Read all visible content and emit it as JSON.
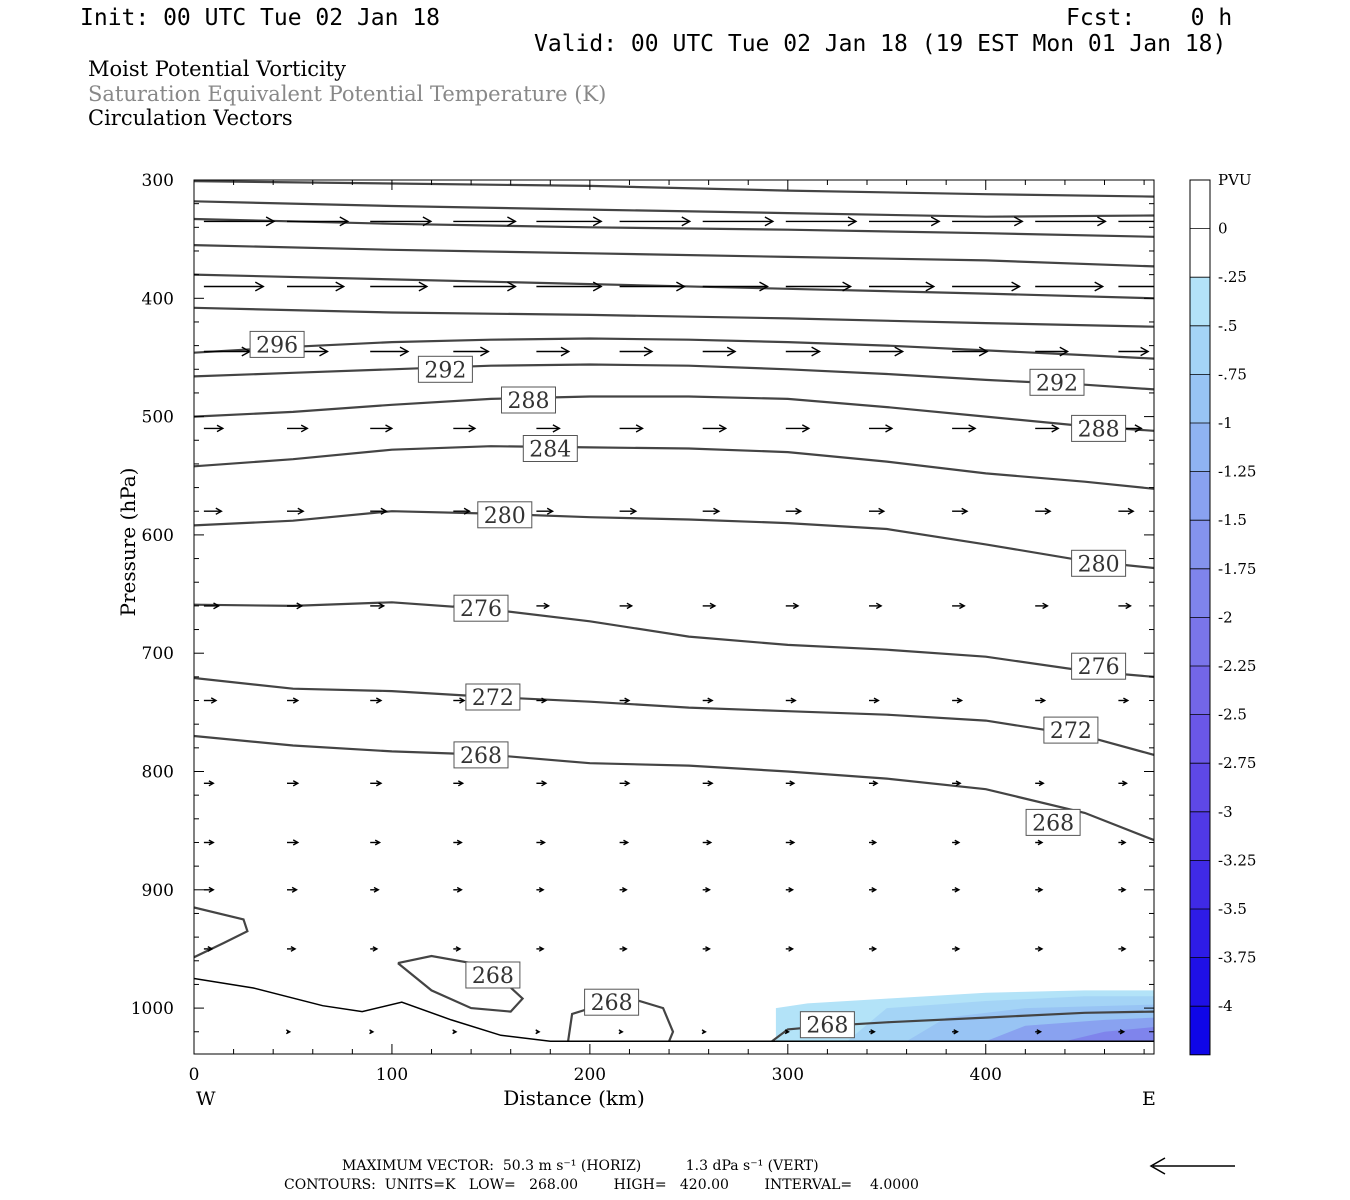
{
  "header": {
    "init": "Init: 00 UTC Tue 02 Jan 18",
    "fcst": "Fcst:    0 h",
    "valid": "Valid: 00 UTC Tue 02 Jan 18 (19 EST Mon 01 Jan 18)"
  },
  "titles": {
    "line1": "Moist Potential Vorticity",
    "line2": "Saturation Equivalent Potential Temperature (K)",
    "line3": "Circulation Vectors"
  },
  "footer": {
    "max_vector": "MAXIMUM VECTOR:  50.3 m s⁻¹ (HORIZ)          1.3 dPa s⁻¹ (VERT)",
    "contours": "CONTOURS:  UNITS=K   LOW=   268.00        HIGH=   420.00        INTERVAL=    4.0000"
  },
  "colors": {
    "contour": "#444444",
    "vector": "#000000",
    "pv_light": "#b3e3f8",
    "pv_dark": "#3a3ae0"
  },
  "chart_data": {
    "type": "line",
    "xlabel": "Distance (km)",
    "ylabel": "Pressure (hPa)",
    "xlim": [
      0,
      485
    ],
    "ylim": [
      300,
      1040
    ],
    "y_inverted": true,
    "x_ticks": [
      0,
      100,
      200,
      300,
      400
    ],
    "y_ticks": [
      300,
      400,
      500,
      600,
      700,
      800,
      900,
      1000
    ],
    "x_end_labels": {
      "left": "W",
      "right": "E"
    },
    "contour_series": [
      {
        "level": 268,
        "label": "268",
        "points": [
          [
            0,
            770
          ],
          [
            50,
            778
          ],
          [
            100,
            783
          ],
          [
            150,
            786
          ],
          [
            200,
            793
          ],
          [
            250,
            795
          ],
          [
            300,
            800
          ],
          [
            350,
            806
          ],
          [
            400,
            815
          ],
          [
            450,
            835
          ],
          [
            485,
            858
          ]
        ],
        "labels_at": [
          [
            145,
            786
          ],
          [
            434,
            843
          ]
        ]
      },
      {
        "level": 272,
        "label": "272",
        "points": [
          [
            0,
            721
          ],
          [
            50,
            730
          ],
          [
            100,
            732
          ],
          [
            150,
            737
          ],
          [
            200,
            741
          ],
          [
            250,
            746
          ],
          [
            300,
            749
          ],
          [
            350,
            752
          ],
          [
            400,
            757
          ],
          [
            450,
            770
          ],
          [
            485,
            786
          ]
        ],
        "labels_at": [
          [
            151,
            737
          ],
          [
            443,
            765
          ]
        ]
      },
      {
        "level": 276,
        "label": "276",
        "points": [
          [
            0,
            659
          ],
          [
            50,
            660
          ],
          [
            100,
            657
          ],
          [
            150,
            663
          ],
          [
            200,
            673
          ],
          [
            250,
            686
          ],
          [
            300,
            693
          ],
          [
            350,
            697
          ],
          [
            400,
            703
          ],
          [
            450,
            715
          ],
          [
            485,
            720
          ]
        ],
        "labels_at": [
          [
            145,
            662
          ],
          [
            457,
            711
          ]
        ]
      },
      {
        "level": 280,
        "label": "280",
        "points": [
          [
            0,
            592
          ],
          [
            50,
            588
          ],
          [
            100,
            580
          ],
          [
            150,
            582
          ],
          [
            200,
            585
          ],
          [
            250,
            587
          ],
          [
            300,
            590
          ],
          [
            350,
            595
          ],
          [
            400,
            608
          ],
          [
            450,
            622
          ],
          [
            485,
            628
          ]
        ],
        "labels_at": [
          [
            157,
            583
          ],
          [
            457,
            624
          ]
        ]
      },
      {
        "level": 284,
        "label": "284",
        "points": [
          [
            0,
            542
          ],
          [
            50,
            536
          ],
          [
            100,
            528
          ],
          [
            150,
            525
          ],
          [
            200,
            526
          ],
          [
            250,
            527
          ],
          [
            300,
            530
          ],
          [
            350,
            538
          ],
          [
            400,
            548
          ],
          [
            450,
            555
          ],
          [
            485,
            561
          ]
        ],
        "labels_at": [
          [
            180,
            527
          ]
        ]
      },
      {
        "level": 288,
        "label": "288",
        "points": [
          [
            0,
            500
          ],
          [
            50,
            496
          ],
          [
            100,
            490
          ],
          [
            150,
            485
          ],
          [
            200,
            483
          ],
          [
            250,
            483
          ],
          [
            300,
            485
          ],
          [
            350,
            492
          ],
          [
            400,
            500
          ],
          [
            450,
            508
          ],
          [
            485,
            512
          ]
        ],
        "labels_at": [
          [
            169,
            486
          ],
          [
            457,
            510
          ]
        ]
      },
      {
        "level": 292,
        "label": "292",
        "points": [
          [
            0,
            466
          ],
          [
            50,
            463
          ],
          [
            100,
            460
          ],
          [
            150,
            457
          ],
          [
            200,
            456
          ],
          [
            250,
            457
          ],
          [
            300,
            460
          ],
          [
            350,
            464
          ],
          [
            400,
            469
          ],
          [
            450,
            473
          ],
          [
            485,
            477
          ]
        ],
        "labels_at": [
          [
            127,
            460
          ],
          [
            436,
            471
          ]
        ]
      },
      {
        "level": 296,
        "label": "296",
        "points": [
          [
            0,
            446
          ],
          [
            50,
            441
          ],
          [
            100,
            437
          ],
          [
            150,
            435
          ],
          [
            200,
            434
          ],
          [
            250,
            435
          ],
          [
            300,
            437
          ],
          [
            350,
            440
          ],
          [
            400,
            444
          ],
          [
            450,
            448
          ],
          [
            485,
            451
          ]
        ],
        "labels_at": [
          [
            42,
            439
          ]
        ]
      },
      {
        "level": 300,
        "label": "",
        "points": [
          [
            0,
            408
          ],
          [
            100,
            412
          ],
          [
            200,
            414
          ],
          [
            300,
            417
          ],
          [
            400,
            421
          ],
          [
            485,
            424
          ]
        ],
        "labels_at": []
      },
      {
        "level": 304,
        "label": "",
        "points": [
          [
            0,
            380
          ],
          [
            100,
            384
          ],
          [
            200,
            388
          ],
          [
            300,
            392
          ],
          [
            400,
            396
          ],
          [
            485,
            400
          ]
        ],
        "labels_at": []
      },
      {
        "level": 308,
        "label": "",
        "points": [
          [
            0,
            355
          ],
          [
            100,
            359
          ],
          [
            200,
            362
          ],
          [
            300,
            365
          ],
          [
            400,
            368
          ],
          [
            485,
            373
          ]
        ],
        "labels_at": []
      },
      {
        "level": 312,
        "label": "",
        "points": [
          [
            0,
            333
          ],
          [
            100,
            337
          ],
          [
            200,
            340
          ],
          [
            300,
            342
          ],
          [
            400,
            345
          ],
          [
            485,
            348
          ]
        ],
        "labels_at": []
      },
      {
        "level": 316,
        "label": "",
        "points": [
          [
            0,
            318
          ],
          [
            100,
            322
          ],
          [
            200,
            325
          ],
          [
            300,
            328
          ],
          [
            400,
            331
          ],
          [
            485,
            330
          ]
        ],
        "labels_at": []
      },
      {
        "level": 320,
        "label": "",
        "points": [
          [
            0,
            301
          ],
          [
            100,
            303
          ],
          [
            200,
            305
          ],
          [
            300,
            309
          ],
          [
            400,
            312
          ],
          [
            485,
            314
          ]
        ],
        "labels_at": []
      }
    ],
    "surface_series": [
      {
        "level": "surface",
        "points": [
          [
            0,
            975
          ],
          [
            30,
            983
          ],
          [
            65,
            998
          ],
          [
            85,
            1003
          ],
          [
            105,
            995
          ],
          [
            130,
            1010
          ],
          [
            155,
            1023
          ],
          [
            180,
            1028
          ],
          [
            485,
            1028
          ]
        ]
      }
    ],
    "closed_contours": [
      {
        "label": "",
        "points": [
          [
            0,
            915
          ],
          [
            25,
            925
          ],
          [
            27,
            935
          ],
          [
            15,
            945
          ],
          [
            0,
            957
          ]
        ],
        "labels_at": []
      },
      {
        "label": "268",
        "points": [
          [
            103,
            962
          ],
          [
            120,
            956
          ],
          [
            140,
            962
          ],
          [
            155,
            975
          ],
          [
            166,
            992
          ],
          [
            160,
            1003
          ],
          [
            140,
            1000
          ],
          [
            120,
            985
          ],
          [
            103,
            962
          ]
        ],
        "labels_at": [
          [
            151,
            972
          ]
        ]
      },
      {
        "label": "268",
        "points": [
          [
            189,
            1028
          ],
          [
            191,
            1005
          ],
          [
            210,
            995
          ],
          [
            225,
            994
          ],
          [
            237,
            1000
          ],
          [
            242,
            1020
          ],
          [
            240,
            1028
          ]
        ],
        "labels_at": [
          [
            211,
            995
          ]
        ]
      },
      {
        "label": "268",
        "points": [
          [
            292,
            1028
          ],
          [
            300,
            1018
          ],
          [
            320,
            1015
          ],
          [
            350,
            1012
          ],
          [
            400,
            1008
          ],
          [
            450,
            1004
          ],
          [
            485,
            1003
          ]
        ],
        "labels_at": [
          [
            320,
            1014
          ]
        ]
      }
    ],
    "pv_shading": [
      {
        "value": -0.25,
        "points": [
          [
            294,
            1028
          ],
          [
            294,
            1000
          ],
          [
            310,
            996
          ],
          [
            350,
            992
          ],
          [
            400,
            987
          ],
          [
            450,
            985
          ],
          [
            485,
            985
          ],
          [
            485,
            1028
          ]
        ]
      },
      {
        "value": -0.5,
        "points": [
          [
            330,
            1028
          ],
          [
            350,
            1000
          ],
          [
            400,
            994
          ],
          [
            450,
            990
          ],
          [
            485,
            990
          ],
          [
            485,
            1028
          ]
        ]
      },
      {
        "value": -0.75,
        "points": [
          [
            360,
            1028
          ],
          [
            380,
            1008
          ],
          [
            420,
            1000
          ],
          [
            485,
            997
          ],
          [
            485,
            1028
          ]
        ]
      },
      {
        "value": -1.25,
        "points": [
          [
            400,
            1028
          ],
          [
            420,
            1015
          ],
          [
            460,
            1010
          ],
          [
            485,
            1008
          ],
          [
            485,
            1028
          ]
        ]
      },
      {
        "value": -1.75,
        "points": [
          [
            440,
            1028
          ],
          [
            460,
            1020
          ],
          [
            485,
            1016
          ],
          [
            485,
            1028
          ]
        ]
      }
    ],
    "vectors": {
      "scale_max_horiz": "50.3 m s⁻¹",
      "scale_max_vert": "1.3 dPa s⁻¹",
      "rows": [
        {
          "p": 335,
          "u": [
            52,
            45,
            45,
            46,
            48,
            52,
            52,
            52,
            52,
            52,
            52,
            52
          ]
        },
        {
          "p": 390,
          "u": [
            44,
            42,
            42,
            46,
            48,
            48,
            48,
            48,
            48,
            50,
            50,
            50
          ]
        },
        {
          "p": 445,
          "u": [
            34,
            30,
            28,
            26,
            24,
            24,
            24,
            25,
            25,
            26,
            24,
            22
          ]
        },
        {
          "p": 510,
          "u": [
            14,
            15,
            16,
            16,
            17,
            17,
            17,
            17,
            17,
            17,
            17,
            17
          ]
        },
        {
          "p": 580,
          "u": [
            13,
            12,
            12,
            12,
            12,
            12,
            12,
            11,
            11,
            11,
            11,
            11
          ]
        },
        {
          "p": 660,
          "u": [
            11,
            11,
            10,
            10,
            9,
            9,
            9,
            9,
            9,
            9,
            9,
            9
          ]
        },
        {
          "p": 740,
          "u": [
            9,
            8,
            8,
            8,
            7,
            7,
            7,
            7,
            7,
            7,
            7,
            7
          ]
        },
        {
          "p": 810,
          "u": [
            7,
            8,
            8,
            7,
            7,
            7,
            7,
            6,
            6,
            6,
            6,
            6
          ]
        },
        {
          "p": 860,
          "u": [
            7,
            8,
            7,
            6,
            6,
            6,
            6,
            6,
            5,
            5,
            5,
            5
          ]
        },
        {
          "p": 900,
          "u": [
            7,
            7,
            6,
            6,
            5,
            5,
            5,
            5,
            5,
            5,
            5,
            5
          ]
        },
        {
          "p": 950,
          "u": [
            6,
            6,
            5,
            5,
            5,
            5,
            5,
            5,
            5,
            5,
            5,
            5
          ]
        },
        {
          "p": 1020,
          "u": [
            0,
            2,
            2,
            2,
            2,
            2,
            2,
            2,
            4,
            4,
            4,
            4
          ]
        }
      ]
    },
    "legend": {
      "title": "PVU",
      "placement": "right",
      "labels": [
        "0",
        "-.25",
        "-.5",
        "-.75",
        "-1",
        "-1.25",
        "-1.5",
        "-1.75",
        "-2",
        "-2.25",
        "-2.5",
        "-2.75",
        "-3",
        "-3.25",
        "-3.5",
        "-3.75",
        "-4"
      ],
      "colors": [
        "#ffffff",
        "#ffffff",
        "#b3e3f8",
        "#a4d4f6",
        "#98c4f4",
        "#8fb3f2",
        "#89a2f0",
        "#8493ee",
        "#7f84ec",
        "#7a75ea",
        "#7366e8",
        "#6a57e8",
        "#5e48e7",
        "#5039e6",
        "#3f2ae6",
        "#2e1ce6",
        "#1f10e6",
        "#0f06e8"
      ]
    }
  }
}
